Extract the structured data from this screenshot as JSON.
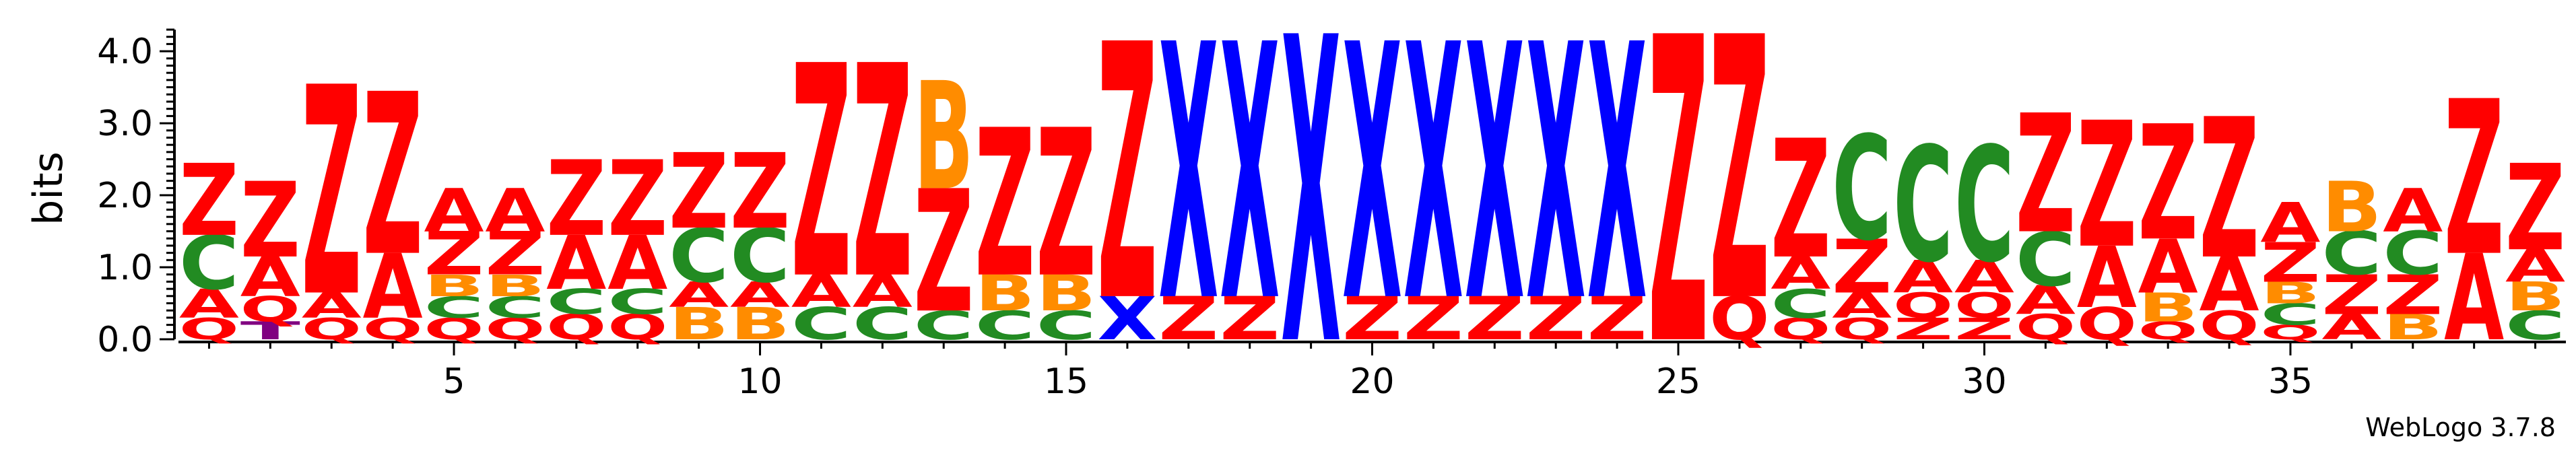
{
  "chart_data": {
    "type": "sequence_logo",
    "ylabel": "bits",
    "ylim": [
      0,
      4.3
    ],
    "y_ticks": [
      0.0,
      1.0,
      2.0,
      3.0,
      4.0
    ],
    "y_tick_labels": [
      "0.0",
      "1.0",
      "2.0",
      "3.0",
      "4.0"
    ],
    "x_ticks": [
      5,
      10,
      15,
      20,
      25,
      30,
      35
    ],
    "x_tick_labels": [
      "5",
      "10",
      "15",
      "20",
      "25",
      "30",
      "35"
    ],
    "positions": 39,
    "colors": {
      "Z": "#ff0000",
      "Q": "#ff0000",
      "A": "#ff0000",
      "C": "#228b22",
      "B": "#ff8c00",
      "X": "#0000ff",
      "T": "#800080"
    },
    "stacks": [
      [
        [
          "Q",
          0.3
        ],
        [
          "A",
          0.4
        ],
        [
          "C",
          0.75
        ],
        [
          "Z",
          1.0
        ]
      ],
      [
        [
          "T",
          0.25
        ],
        [
          "Q",
          0.35
        ],
        [
          "A",
          0.55
        ],
        [
          "Z",
          1.05
        ]
      ],
      [
        [
          "Q",
          0.3
        ],
        [
          "A",
          0.35
        ],
        [
          "Z",
          2.9
        ]
      ],
      [
        [
          "Q",
          0.3
        ],
        [
          "A",
          0.9
        ],
        [
          "Z",
          2.25
        ]
      ],
      [
        [
          "Q",
          0.3
        ],
        [
          "C",
          0.3
        ],
        [
          "B",
          0.3
        ],
        [
          "Z",
          0.6
        ],
        [
          "A",
          0.6
        ]
      ],
      [
        [
          "Q",
          0.3
        ],
        [
          "C",
          0.3
        ],
        [
          "B",
          0.3
        ],
        [
          "Z",
          0.6
        ],
        [
          "A",
          0.6
        ]
      ],
      [
        [
          "Q",
          0.35
        ],
        [
          "C",
          0.35
        ],
        [
          "A",
          0.75
        ],
        [
          "Z",
          1.05
        ]
      ],
      [
        [
          "Q",
          0.35
        ],
        [
          "C",
          0.35
        ],
        [
          "A",
          0.75
        ],
        [
          "Z",
          1.05
        ]
      ],
      [
        [
          "B",
          0.45
        ],
        [
          "A",
          0.35
        ],
        [
          "C",
          0.75
        ],
        [
          "Z",
          1.05
        ]
      ],
      [
        [
          "B",
          0.45
        ],
        [
          "A",
          0.35
        ],
        [
          "C",
          0.75
        ],
        [
          "Z",
          1.05
        ]
      ],
      [
        [
          "C",
          0.45
        ],
        [
          "A",
          0.45
        ],
        [
          "Z",
          2.95
        ]
      ],
      [
        [
          "C",
          0.45
        ],
        [
          "A",
          0.45
        ],
        [
          "Z",
          2.95
        ]
      ],
      [
        [
          "C",
          0.4
        ],
        [
          "Z",
          1.7
        ],
        [
          "B",
          1.5
        ]
      ],
      [
        [
          "C",
          0.4
        ],
        [
          "B",
          0.5
        ],
        [
          "Z",
          2.05
        ]
      ],
      [
        [
          "C",
          0.4
        ],
        [
          "B",
          0.5
        ],
        [
          "Z",
          2.05
        ]
      ],
      [
        [
          "X",
          0.6
        ],
        [
          "Z",
          3.55
        ]
      ],
      [
        [
          "Z",
          0.6
        ],
        [
          "X",
          3.55
        ]
      ],
      [
        [
          "Z",
          0.6
        ],
        [
          "X",
          3.55
        ]
      ],
      [
        [
          "X",
          4.25
        ]
      ],
      [
        [
          "Z",
          0.6
        ],
        [
          "X",
          3.55
        ]
      ],
      [
        [
          "Z",
          0.6
        ],
        [
          "X",
          3.55
        ]
      ],
      [
        [
          "Z",
          0.6
        ],
        [
          "X",
          3.55
        ]
      ],
      [
        [
          "Z",
          0.6
        ],
        [
          "X",
          3.55
        ]
      ],
      [
        [
          "Z",
          0.6
        ],
        [
          "X",
          3.55
        ]
      ],
      [
        [
          "Z",
          4.25
        ]
      ],
      [
        [
          "Q",
          0.6
        ],
        [
          "Z",
          3.65
        ]
      ],
      [
        [
          "Q",
          0.3
        ],
        [
          "C",
          0.4
        ],
        [
          "A",
          0.45
        ],
        [
          "Z",
          1.65
        ]
      ],
      [
        [
          "Q",
          0.3
        ],
        [
          "A",
          0.35
        ],
        [
          "Z",
          0.75
        ],
        [
          "C",
          1.45
        ]
      ],
      [
        [
          "Z",
          0.3
        ],
        [
          "Q",
          0.35
        ],
        [
          "A",
          0.45
        ],
        [
          "C",
          1.6
        ]
      ],
      [
        [
          "Z",
          0.3
        ],
        [
          "Q",
          0.35
        ],
        [
          "A",
          0.45
        ],
        [
          "C",
          1.6
        ]
      ],
      [
        [
          "Q",
          0.35
        ],
        [
          "A",
          0.4
        ],
        [
          "C",
          0.75
        ],
        [
          "Z",
          1.65
        ]
      ],
      [
        [
          "Q",
          0.45
        ],
        [
          "A",
          0.85
        ],
        [
          "Z",
          1.75
        ]
      ],
      [
        [
          "Q",
          0.25
        ],
        [
          "B",
          0.4
        ],
        [
          "A",
          0.75
        ],
        [
          "Z",
          1.6
        ]
      ],
      [
        [
          "Q",
          0.4
        ],
        [
          "A",
          0.75
        ],
        [
          "Z",
          1.95
        ]
      ],
      [
        [
          "Q",
          0.2
        ],
        [
          "C",
          0.3
        ],
        [
          "B",
          0.3
        ],
        [
          "Z",
          0.55
        ],
        [
          "A",
          0.55
        ]
      ],
      [
        [
          "A",
          0.35
        ],
        [
          "Z",
          0.55
        ],
        [
          "C",
          0.6
        ],
        [
          "B",
          0.7
        ]
      ],
      [
        [
          "B",
          0.35
        ],
        [
          "Z",
          0.55
        ],
        [
          "C",
          0.6
        ],
        [
          "A",
          0.6
        ]
      ],
      [
        [
          "A",
          1.2
        ],
        [
          "Z",
          2.15
        ]
      ],
      [
        [
          "C",
          0.4
        ],
        [
          "B",
          0.4
        ],
        [
          "A",
          0.45
        ],
        [
          "Z",
          1.2
        ]
      ]
    ]
  },
  "credit": "WebLogo 3.7.8"
}
